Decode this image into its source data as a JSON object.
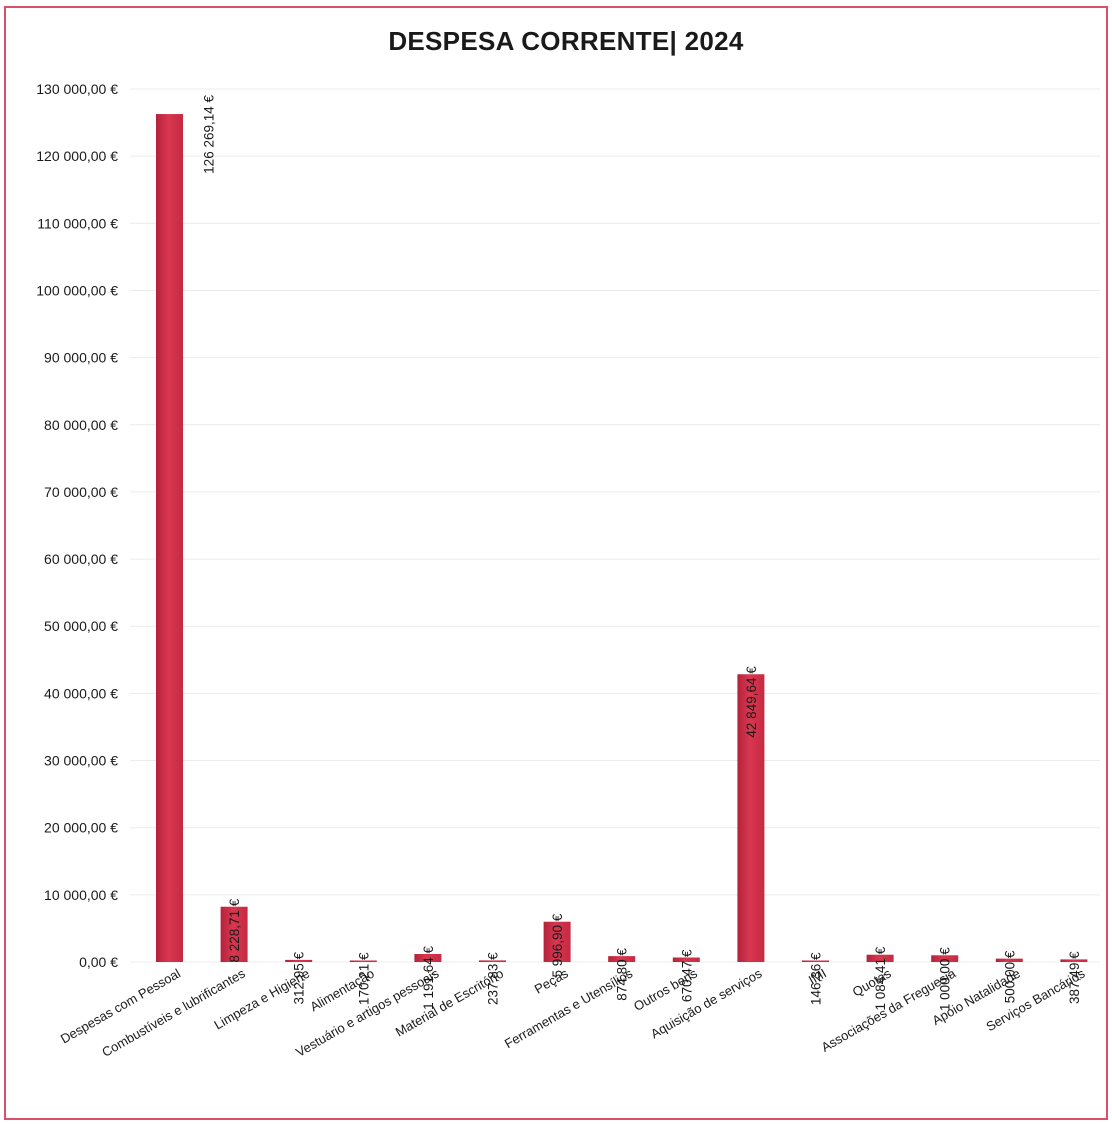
{
  "chart_data": {
    "type": "bar",
    "title": "DESPESA CORRENTE| 2024",
    "xlabel": "",
    "ylabel": "",
    "ylim": [
      0,
      130000
    ],
    "grid": true,
    "legend": "none",
    "yticks": [
      "0,00 €",
      "10 000,00 €",
      "20 000,00 €",
      "30 000,00 €",
      "40 000,00 €",
      "50 000,00 €",
      "60 000,00 €",
      "70 000,00 €",
      "80 000,00 €",
      "90 000,00 €",
      "100 000,00 €",
      "110 000,00 €",
      "120 000,00 €",
      "130 000,00 €"
    ],
    "categories": [
      "Despesas com Pessoal",
      "Combustíveis e lubrificantes",
      "Limpeza e Higiene",
      "Alimentação",
      "Vestuário e artigos pessoais",
      "Material de Escritório",
      "Peças",
      "Ferramentas e Utensílios",
      "Outros bens",
      "Aquisição de serviços",
      "IMI",
      "Quotas",
      "Associações da Freguesia",
      "Apoio Natalidade",
      "Serviços Bancários"
    ],
    "values": [
      126269.14,
      8228.71,
      312.95,
      170.21,
      1191.64,
      237.83,
      5996.9,
      874.8,
      670.47,
      42849.64,
      146.36,
      1084.41,
      1000.0,
      500.0,
      387.49
    ],
    "data_labels": [
      "126 269,14 €",
      "8 228,71 €",
      "312,95 €",
      "170,21 €",
      "1 191,64 €",
      "237,83 €",
      "5 996,90 €",
      "874,80 €",
      "670,47 €",
      "42 849,64 €",
      "146,36 €",
      "1 084,41 €",
      "1 000,00 €",
      "500,00 €",
      "387,49 €"
    ],
    "colors": {
      "bar": "#d8374f",
      "bar_dark": "#b3223a",
      "border": "#d8506a",
      "grid": "#ececec"
    }
  }
}
